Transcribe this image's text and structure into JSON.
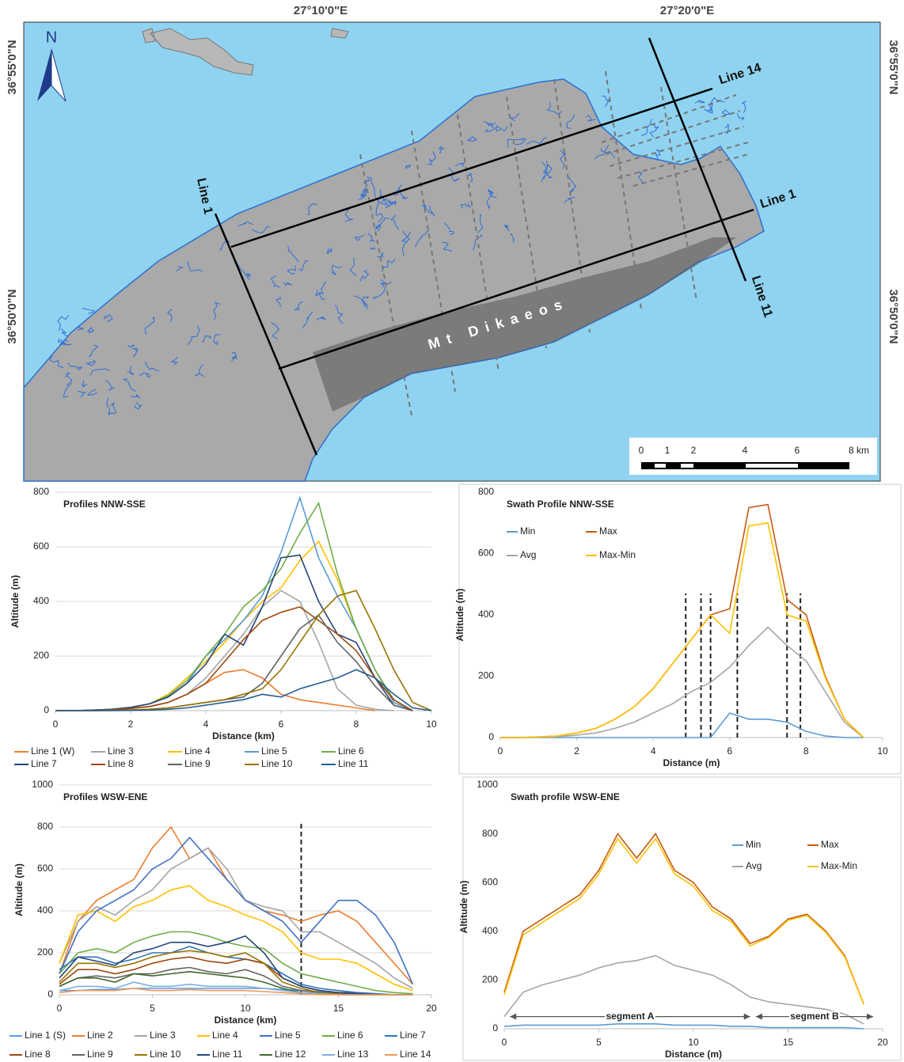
{
  "map": {
    "lon_labels": [
      "27°10'0\"E",
      "27°20'0\"E"
    ],
    "lat_left": [
      "36°55'0\"N",
      "36°50'0\"N"
    ],
    "lat_right": [
      "36°55'0\"N",
      "36°50'0\"N"
    ],
    "north": "N",
    "line_labels": [
      "Line 1",
      "Line 14",
      "Line 1",
      "Line 11"
    ],
    "mountain": "Mt Dikaeos",
    "scale_labels": [
      "0",
      "1",
      "2",
      "4",
      "6",
      "8 km"
    ]
  },
  "chart_data": [
    {
      "type": "line",
      "title": "Profiles NNW-SSE",
      "x_label": "Distance (km)",
      "y_label": "Altitude (m)",
      "xlim": [
        0,
        10
      ],
      "xticks": [
        0,
        2,
        4,
        6,
        8,
        10
      ],
      "ylim": [
        0,
        800
      ],
      "yticks": [
        0,
        200,
        400,
        600,
        800
      ],
      "grid": true,
      "legend": "bottom",
      "x": [
        0,
        0.5,
        1,
        1.5,
        2,
        2.5,
        3,
        3.5,
        4,
        4.5,
        5,
        5.5,
        6,
        6.5,
        7,
        7.5,
        8,
        8.5,
        9,
        9.5,
        10
      ],
      "series": [
        {
          "name": "Line 1 (W)",
          "color": "#ed7d31",
          "values": [
            0,
            0,
            1,
            3,
            8,
            15,
            30,
            60,
            100,
            140,
            150,
            120,
            60,
            40,
            30,
            20,
            10,
            0,
            null,
            null,
            null
          ]
        },
        {
          "name": "Line 3",
          "color": "#a5a5a5",
          "values": [
            0,
            0,
            1,
            3,
            8,
            15,
            30,
            60,
            120,
            200,
            280,
            380,
            440,
            400,
            250,
            80,
            20,
            5,
            0,
            null,
            null
          ]
        },
        {
          "name": "Line 4",
          "color": "#ffc000",
          "values": [
            0,
            0,
            2,
            5,
            12,
            25,
            60,
            120,
            180,
            250,
            330,
            400,
            450,
            550,
            620,
            480,
            300,
            150,
            30,
            0,
            null
          ]
        },
        {
          "name": "Line 5",
          "color": "#5b9bd5",
          "values": [
            0,
            0,
            2,
            5,
            12,
            25,
            50,
            100,
            200,
            260,
            330,
            420,
            580,
            780,
            560,
            420,
            300,
            150,
            30,
            0,
            null
          ]
        },
        {
          "name": "Line 6",
          "color": "#70ad47",
          "values": [
            0,
            0,
            2,
            5,
            12,
            25,
            55,
            110,
            200,
            280,
            380,
            440,
            520,
            650,
            760,
            500,
            300,
            150,
            40,
            0,
            null
          ]
        },
        {
          "name": "Line 7",
          "color": "#264478",
          "values": [
            0,
            0,
            2,
            5,
            12,
            25,
            50,
            100,
            170,
            280,
            240,
            380,
            560,
            570,
            400,
            280,
            250,
            120,
            20,
            0,
            null
          ]
        },
        {
          "name": "Line 8",
          "color": "#9e480e",
          "values": [
            0,
            0,
            1,
            3,
            8,
            15,
            30,
            60,
            100,
            180,
            260,
            330,
            360,
            380,
            330,
            280,
            220,
            120,
            40,
            0,
            null
          ]
        },
        {
          "name": "Line 9",
          "color": "#636363",
          "values": [
            0,
            0,
            0,
            1,
            3,
            5,
            10,
            20,
            30,
            40,
            50,
            100,
            200,
            300,
            350,
            250,
            180,
            90,
            20,
            0,
            null
          ]
        },
        {
          "name": "Line 10",
          "color": "#997300",
          "values": [
            0,
            0,
            0,
            1,
            2,
            5,
            10,
            20,
            30,
            40,
            60,
            80,
            150,
            250,
            350,
            420,
            440,
            300,
            150,
            30,
            0
          ]
        },
        {
          "name": "Line 11",
          "color": "#255e91",
          "values": [
            0,
            0,
            0,
            0,
            1,
            2,
            5,
            10,
            20,
            30,
            40,
            60,
            50,
            80,
            100,
            120,
            150,
            120,
            60,
            10,
            0
          ]
        }
      ]
    },
    {
      "type": "line",
      "title": "Swath Profile NNW-SSE",
      "x_label": "Distance (m)",
      "y_label": "Altitude (m)",
      "xlim": [
        0,
        10
      ],
      "xticks": [
        0,
        2,
        4,
        6,
        8,
        10
      ],
      "ylim": [
        0,
        800
      ],
      "yticks": [
        0,
        200,
        400,
        600,
        800
      ],
      "grid": false,
      "legend": "upper left",
      "vlines": [
        4.85,
        5.25,
        5.5,
        6.2,
        7.5,
        7.85
      ],
      "vline_top": 470,
      "x": [
        0,
        0.5,
        1,
        1.5,
        2,
        2.5,
        3,
        3.5,
        4,
        4.5,
        5,
        5.5,
        6,
        6.5,
        7,
        7.5,
        8,
        8.5,
        9,
        9.5,
        10
      ],
      "series": [
        {
          "name": "Min",
          "color": "#5b9bd5",
          "values": [
            0,
            0,
            0,
            0,
            0,
            0,
            0,
            0,
            0,
            0,
            0,
            0,
            80,
            60,
            60,
            50,
            20,
            5,
            0,
            0,
            null
          ]
        },
        {
          "name": "Max",
          "color": "#c55a11",
          "values": [
            0,
            0,
            2,
            5,
            15,
            30,
            60,
            100,
            160,
            240,
            320,
            400,
            420,
            750,
            760,
            450,
            400,
            200,
            60,
            0,
            null
          ]
        },
        {
          "name": "Avg",
          "color": "#a5a5a5",
          "values": [
            0,
            0,
            1,
            3,
            8,
            15,
            30,
            50,
            80,
            110,
            150,
            180,
            230,
            300,
            360,
            300,
            250,
            150,
            50,
            0,
            null
          ]
        },
        {
          "name": "Max-Min",
          "color": "#ffc000",
          "values": [
            0,
            0,
            2,
            5,
            15,
            30,
            60,
            100,
            160,
            240,
            320,
            400,
            340,
            690,
            700,
            400,
            380,
            195,
            60,
            0,
            null
          ]
        }
      ]
    },
    {
      "type": "line",
      "title": "Profiles WSW-ENE",
      "x_label": "Distance (km)",
      "y_label": "Altitude (m)",
      "xlim": [
        0,
        20
      ],
      "xticks": [
        0,
        5,
        10,
        15,
        20
      ],
      "ylim": [
        0,
        1000
      ],
      "yticks": [
        0,
        200,
        400,
        600,
        800,
        1000
      ],
      "grid": true,
      "legend": "bottom",
      "vlines": [
        13
      ],
      "vline_top": 830,
      "x": [
        0,
        1,
        2,
        3,
        4,
        5,
        6,
        7,
        8,
        9,
        10,
        11,
        12,
        13,
        14,
        15,
        16,
        17,
        18,
        19,
        20
      ],
      "series": [
        {
          "name": "Line 1 (S)",
          "color": "#5b9bd5",
          "values": [
            20,
            20,
            25,
            25,
            30,
            30,
            30,
            30,
            30,
            30,
            30,
            30,
            25,
            20,
            15,
            10,
            10,
            5,
            0,
            0,
            null
          ]
        },
        {
          "name": "Line 2",
          "color": "#ed7d31",
          "values": [
            100,
            350,
            450,
            500,
            550,
            700,
            800,
            650,
            700,
            550,
            450,
            400,
            380,
            350,
            380,
            400,
            350,
            250,
            150,
            50,
            null
          ]
        },
        {
          "name": "Line 3",
          "color": "#a5a5a5",
          "values": [
            150,
            350,
            420,
            380,
            450,
            500,
            600,
            650,
            700,
            600,
            450,
            420,
            400,
            300,
            300,
            250,
            200,
            150,
            80,
            30,
            null
          ]
        },
        {
          "name": "Line 4",
          "color": "#ffc000",
          "values": [
            150,
            380,
            400,
            350,
            420,
            450,
            500,
            520,
            450,
            420,
            380,
            350,
            300,
            200,
            170,
            170,
            150,
            100,
            50,
            20,
            null
          ]
        },
        {
          "name": "Line 5",
          "color": "#4472c4",
          "values": [
            100,
            300,
            400,
            450,
            500,
            600,
            650,
            750,
            650,
            550,
            450,
            400,
            350,
            250,
            350,
            450,
            450,
            380,
            250,
            50,
            null
          ]
        },
        {
          "name": "Line 6",
          "color": "#70ad47",
          "values": [
            100,
            200,
            220,
            200,
            250,
            280,
            300,
            300,
            280,
            250,
            230,
            220,
            150,
            100,
            80,
            60,
            40,
            20,
            10,
            5,
            null
          ]
        },
        {
          "name": "Line 7",
          "color": "#2e75b6",
          "values": [
            120,
            180,
            180,
            150,
            170,
            200,
            200,
            230,
            200,
            180,
            170,
            150,
            100,
            50,
            30,
            20,
            10,
            5,
            0,
            0,
            null
          ]
        },
        {
          "name": "Line 8",
          "color": "#9e480e",
          "values": [
            50,
            120,
            120,
            100,
            120,
            150,
            170,
            180,
            160,
            150,
            170,
            150,
            80,
            40,
            20,
            10,
            5,
            0,
            0,
            0,
            null
          ]
        },
        {
          "name": "Line 9",
          "color": "#636363",
          "values": [
            40,
            80,
            90,
            80,
            100,
            100,
            120,
            130,
            110,
            100,
            120,
            90,
            40,
            20,
            10,
            5,
            0,
            0,
            0,
            0,
            null
          ]
        },
        {
          "name": "Line 10",
          "color": "#997300",
          "values": [
            60,
            150,
            150,
            130,
            150,
            180,
            200,
            210,
            200,
            180,
            200,
            150,
            60,
            30,
            10,
            5,
            0,
            0,
            0,
            0,
            null
          ]
        },
        {
          "name": "Line 11",
          "color": "#264478",
          "values": [
            80,
            180,
            160,
            140,
            200,
            220,
            250,
            250,
            230,
            250,
            280,
            200,
            80,
            40,
            20,
            10,
            5,
            0,
            0,
            0,
            null
          ]
        },
        {
          "name": "Line 12",
          "color": "#43682b",
          "values": [
            40,
            80,
            80,
            60,
            100,
            90,
            100,
            110,
            100,
            90,
            80,
            60,
            30,
            10,
            5,
            0,
            0,
            0,
            0,
            0,
            null
          ]
        },
        {
          "name": "Line 13",
          "color": "#7cafdd",
          "values": [
            20,
            40,
            40,
            30,
            60,
            40,
            40,
            50,
            40,
            40,
            40,
            30,
            20,
            10,
            5,
            0,
            0,
            0,
            0,
            0,
            null
          ]
        },
        {
          "name": "Line 14",
          "color": "#f1975a",
          "values": [
            10,
            20,
            20,
            20,
            30,
            20,
            20,
            25,
            20,
            20,
            20,
            15,
            10,
            5,
            0,
            0,
            0,
            0,
            0,
            0,
            null
          ]
        }
      ]
    },
    {
      "type": "line",
      "title": "Swath profile WSW-ENE",
      "x_label": "Distance (m)",
      "y_label": "Altitude (m)",
      "xlim": [
        0,
        20
      ],
      "xticks": [
        0,
        5,
        10,
        15,
        20
      ],
      "ylim": [
        0,
        1000
      ],
      "yticks": [
        0,
        200,
        400,
        600,
        800,
        1000
      ],
      "grid": false,
      "legend": "upper right",
      "annotations": [
        {
          "text": "segment A",
          "x": [
            0.3,
            13
          ],
          "y": 50
        },
        {
          "text": "segment B",
          "x": [
            13.3,
            19.5
          ],
          "y": 50
        }
      ],
      "x": [
        0,
        1,
        2,
        3,
        4,
        5,
        6,
        7,
        8,
        9,
        10,
        11,
        12,
        13,
        14,
        15,
        16,
        17,
        18,
        19,
        20
      ],
      "series": [
        {
          "name": "Min",
          "color": "#5b9bd5",
          "values": [
            10,
            15,
            15,
            15,
            15,
            15,
            20,
            20,
            20,
            15,
            15,
            15,
            10,
            10,
            5,
            5,
            5,
            5,
            5,
            0,
            null
          ]
        },
        {
          "name": "Max",
          "color": "#c55a11",
          "values": [
            150,
            400,
            450,
            500,
            550,
            650,
            800,
            700,
            800,
            650,
            600,
            500,
            450,
            350,
            380,
            450,
            470,
            400,
            300,
            100,
            null
          ]
        },
        {
          "name": "Avg",
          "color": "#a5a5a5",
          "values": [
            50,
            150,
            180,
            200,
            220,
            250,
            270,
            280,
            300,
            260,
            240,
            220,
            180,
            130,
            110,
            100,
            90,
            80,
            60,
            20,
            null
          ]
        },
        {
          "name": "Max-Min",
          "color": "#ffc000",
          "values": [
            140,
            385,
            435,
            485,
            535,
            635,
            780,
            680,
            780,
            635,
            585,
            485,
            440,
            340,
            375,
            445,
            465,
            395,
            295,
            100,
            null
          ]
        }
      ]
    }
  ]
}
